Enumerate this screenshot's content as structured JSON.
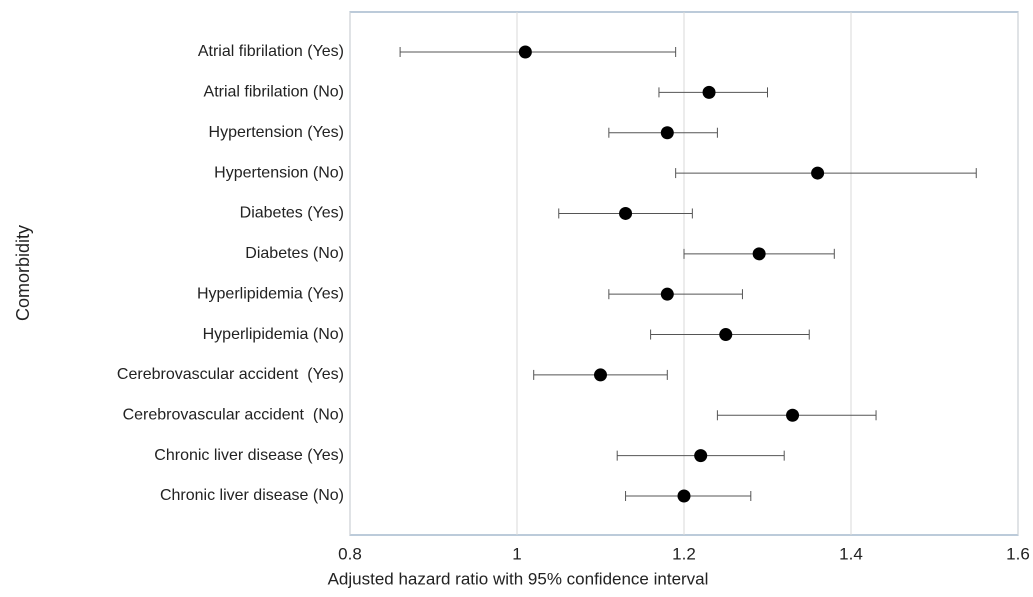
{
  "chart_data": {
    "type": "forest",
    "xlabel": "Adjusted hazard ratio with 95% confidence interval",
    "ylabel": "Comorbidity",
    "categories": [
      "Atrial fibrilation (Yes)",
      "Atrial fibrilation (No)",
      "Hypertension (Yes)",
      "Hypertension (No)",
      "Diabetes (Yes)",
      "Diabetes (No)",
      "Hyperlipidemia (Yes)",
      "Hyperlipidemia (No)",
      "Cerebrovascular accident  (Yes)",
      "Cerebrovascular accident  (No)",
      "Chronic liver disease (Yes)",
      "Chronic liver disease (No)"
    ],
    "values": [
      1.01,
      1.23,
      1.18,
      1.36,
      1.13,
      1.29,
      1.18,
      1.25,
      1.1,
      1.33,
      1.22,
      1.2
    ],
    "lower": [
      0.86,
      1.17,
      1.11,
      1.19,
      1.05,
      1.2,
      1.11,
      1.16,
      1.02,
      1.24,
      1.12,
      1.13
    ],
    "upper": [
      1.19,
      1.3,
      1.24,
      1.55,
      1.21,
      1.38,
      1.27,
      1.35,
      1.18,
      1.43,
      1.32,
      1.28
    ],
    "color": "#000000",
    "xlim": [
      0.8,
      1.6
    ],
    "xticks": [
      0.8,
      1,
      1.2,
      1.4,
      1.6
    ],
    "grid": true
  }
}
